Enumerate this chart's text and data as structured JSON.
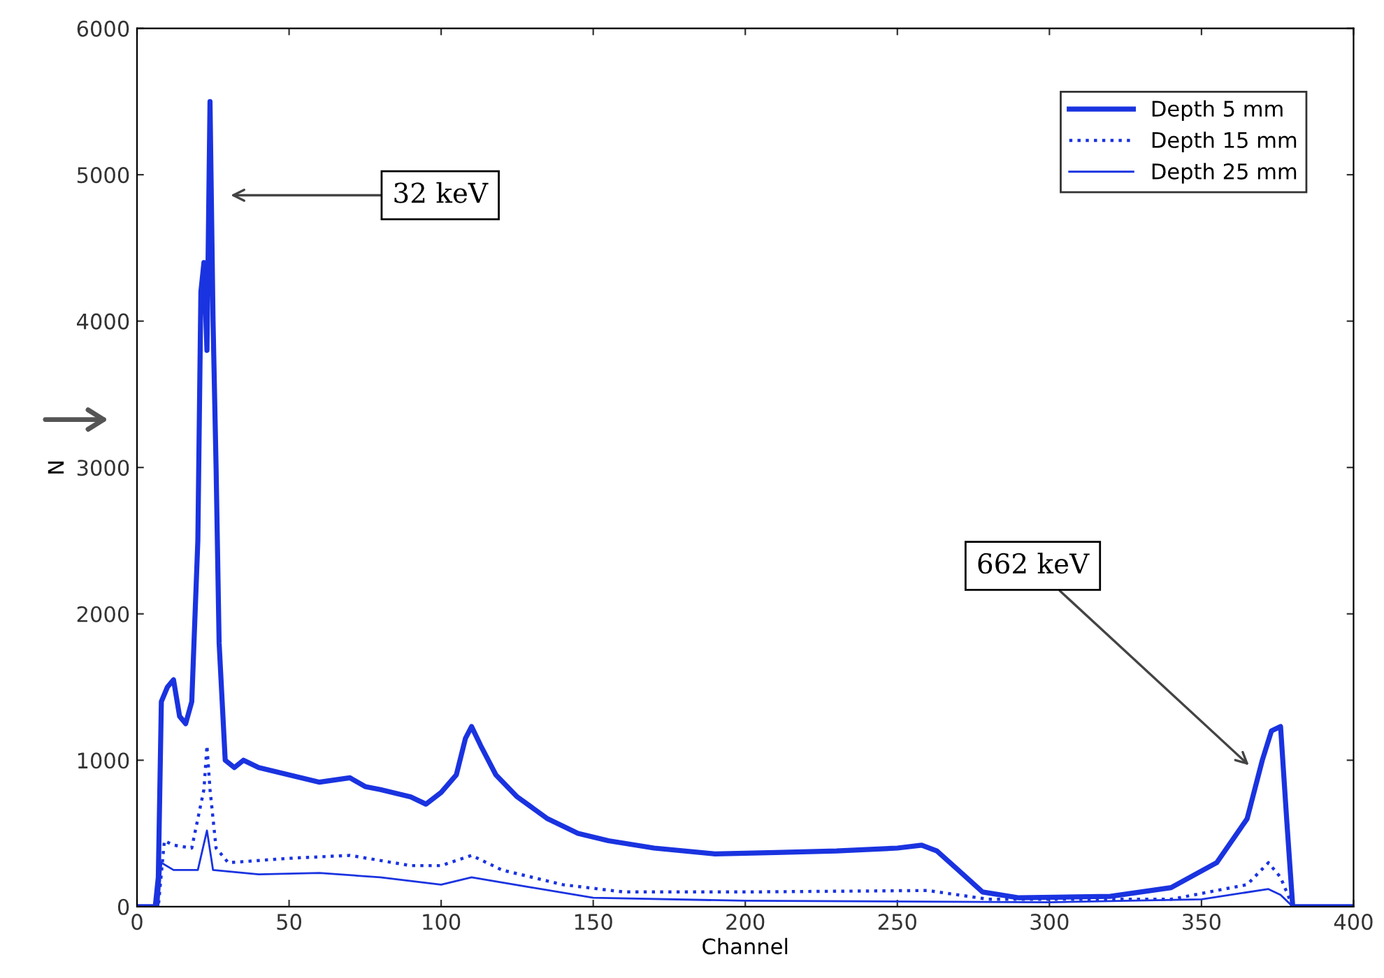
{
  "chart_data": {
    "type": "line",
    "xlabel": "Channel",
    "ylabel": "N",
    "xlim": [
      0,
      400
    ],
    "ylim": [
      0,
      6000
    ],
    "xticks": [
      0,
      50,
      100,
      150,
      200,
      250,
      300,
      350,
      400
    ],
    "yticks": [
      0,
      1000,
      2000,
      3000,
      4000,
      5000,
      6000
    ],
    "grid": false,
    "legend": "top right",
    "marker": "none",
    "series": [
      {
        "name": "Depth 5 mm",
        "color": "#1a33e0",
        "line_style": "solid",
        "x": [
          0,
          6,
          7,
          8,
          10,
          12,
          14,
          16,
          18,
          20,
          21,
          22,
          23,
          24,
          25,
          26,
          27,
          29,
          32,
          35,
          40,
          50,
          60,
          70,
          75,
          80,
          90,
          95,
          100,
          105,
          108,
          110,
          113,
          118,
          125,
          135,
          145,
          155,
          170,
          190,
          210,
          230,
          250,
          258,
          263,
          270,
          278,
          290,
          320,
          340,
          355,
          365,
          370,
          373,
          376,
          378,
          380,
          400
        ],
        "values": [
          0,
          0,
          200,
          1400,
          1500,
          1550,
          1300,
          1250,
          1400,
          2500,
          4200,
          4400,
          3800,
          5500,
          4000,
          3000,
          1800,
          1000,
          950,
          1000,
          950,
          900,
          850,
          880,
          820,
          800,
          750,
          700,
          780,
          900,
          1150,
          1230,
          1100,
          900,
          750,
          600,
          500,
          450,
          400,
          360,
          370,
          380,
          400,
          420,
          380,
          250,
          100,
          60,
          70,
          130,
          300,
          600,
          1000,
          1200,
          1230,
          600,
          0,
          0
        ]
      },
      {
        "name": "Depth 15 mm",
        "color": "#1a33e0",
        "line_style": "dotted",
        "x": [
          0,
          7,
          9,
          12,
          18,
          22,
          23,
          24,
          26,
          30,
          50,
          70,
          90,
          100,
          110,
          120,
          140,
          160,
          200,
          260,
          280,
          340,
          365,
          372,
          376,
          380,
          400
        ],
        "values": [
          0,
          0,
          450,
          420,
          400,
          800,
          1100,
          800,
          400,
          300,
          330,
          350,
          280,
          280,
          350,
          250,
          150,
          100,
          100,
          110,
          50,
          50,
          150,
          300,
          200,
          0,
          0
        ]
      },
      {
        "name": "Depth 25 mm",
        "color": "#1a33e0",
        "line_style": "solid",
        "x": [
          0,
          7,
          8,
          12,
          20,
          23,
          25,
          40,
          60,
          80,
          100,
          110,
          130,
          150,
          200,
          300,
          350,
          372,
          376,
          380,
          400
        ],
        "values": [
          0,
          0,
          300,
          250,
          250,
          520,
          250,
          220,
          230,
          200,
          150,
          200,
          130,
          60,
          40,
          30,
          50,
          120,
          80,
          0,
          0
        ]
      }
    ],
    "annotations": [
      "32 keV",
      "662 keV"
    ]
  }
}
